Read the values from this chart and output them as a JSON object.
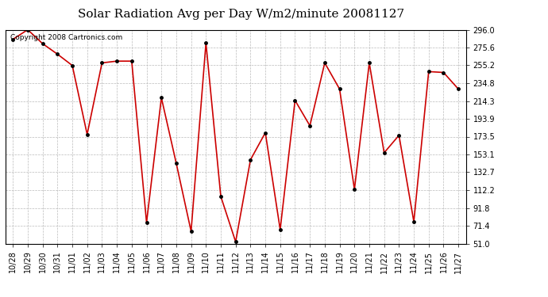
{
  "title": "Solar Radiation Avg per Day W/m2/minute 20081127",
  "copyright": "Copyright 2008 Cartronics.com",
  "dates": [
    "10/28",
    "10/29",
    "10/30",
    "10/31",
    "11/01",
    "11/02",
    "11/03",
    "11/04",
    "11/05",
    "11/06",
    "11/07",
    "11/08",
    "11/09",
    "11/10",
    "11/11",
    "11/12",
    "11/13",
    "11/14",
    "11/15",
    "11/16",
    "11/17",
    "11/18",
    "11/19",
    "11/20",
    "11/21",
    "11/22",
    "11/23",
    "11/24",
    "11/25",
    "11/26",
    "11/27"
  ],
  "values": [
    285.0,
    296.0,
    280.0,
    268.0,
    255.0,
    176.0,
    258.0,
    260.0,
    260.0,
    75.0,
    218.0,
    143.0,
    65.0,
    281.0,
    105.0,
    53.0,
    147.0,
    178.0,
    67.0,
    215.0,
    186.0,
    258.0,
    228.0,
    113.0,
    258.0,
    155.0,
    175.0,
    76.0,
    248.0,
    247.0,
    228.0
  ],
  "line_color": "#cc0000",
  "marker_size": 2.5,
  "marker_color": "#000000",
  "bg_color": "#ffffff",
  "grid_color": "#bbbbbb",
  "ylim": [
    51.0,
    296.0
  ],
  "yticks": [
    51.0,
    71.4,
    91.8,
    112.2,
    132.7,
    153.1,
    173.5,
    193.9,
    214.3,
    234.8,
    255.2,
    275.6,
    296.0
  ],
  "title_fontsize": 11,
  "tick_fontsize": 7,
  "copyright_fontsize": 6.5
}
